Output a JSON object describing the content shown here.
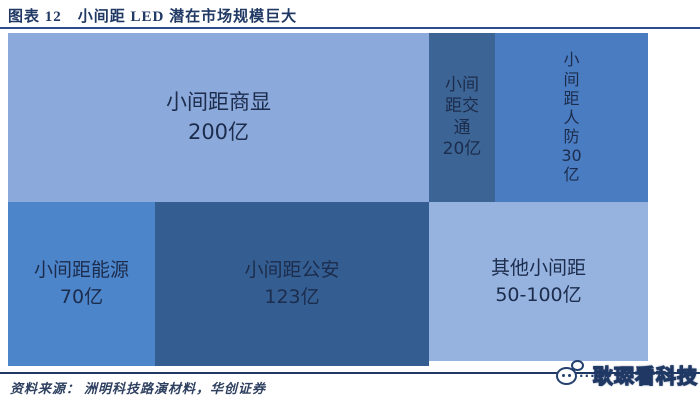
{
  "header": {
    "figure_label": "图表 12",
    "title": "小间距 LED 潜在市场规模巨大"
  },
  "chart_data": {
    "type": "treemap",
    "title": "小间距LED潜在市场规模巨大",
    "unit": "亿",
    "layout_rows": [
      [
        "小间距商显",
        "小间距交通",
        "小间距人防"
      ],
      [
        "小间距能源",
        "小间距公安",
        "其他小间距"
      ]
    ],
    "items": [
      {
        "label": "小间距商显",
        "value_label": "200亿",
        "value": 200,
        "color": "#8ca9db"
      },
      {
        "label": "小间距交通",
        "value_label": "20亿",
        "value": 20,
        "color": "#3c6494"
      },
      {
        "label": "小间距人防",
        "value_label": "30亿",
        "value": 30,
        "color": "#4a7cc2"
      },
      {
        "label": "小间距能源",
        "value_label": "70亿",
        "value": 70,
        "color": "#4d85cb"
      },
      {
        "label": "小间距公安",
        "value_label": "123亿",
        "value": 123,
        "color": "#345e92"
      },
      {
        "label": "其他小间距",
        "value_label": "50-100亿",
        "value_min": 50,
        "value_max": 100,
        "color": "#96b3e0"
      }
    ]
  },
  "source": {
    "label": "资料来源：",
    "text": "洲明科技路演材料，华创证券"
  },
  "watermark": {
    "name": "耿琛看科技"
  },
  "colors": {
    "title_navy": "#1f3864",
    "header_rule": "#2b4d8e",
    "footer_rule": "#1f3864",
    "block_text": "#1c2c4c",
    "background": "#ffffff"
  }
}
